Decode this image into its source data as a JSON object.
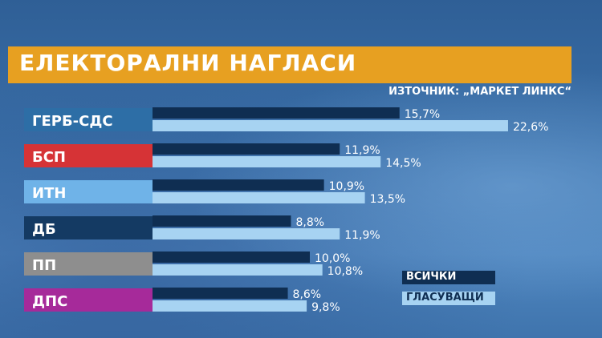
{
  "title": "ЕЛЕКТОРАЛНИ НАГЛАСИ",
  "source": "ИЗТОЧНИК: „МАРКЕТ ЛИНКС“",
  "colors": {
    "title_bar": "#e7a021",
    "series_all": "#0f2e52",
    "series_voters": "#a7d3f2"
  },
  "legend": {
    "all": "ВСИЧКИ",
    "voters": "ГЛАСУВАЩИ"
  },
  "chart_data": {
    "type": "bar",
    "orientation": "horizontal",
    "categories": [
      "ГЕРБ-СДС",
      "БСП",
      "ИТН",
      "ДБ",
      "ПП",
      "ДПС"
    ],
    "category_colors": [
      "#2d6ea6",
      "#d63336",
      "#6fb3e8",
      "#143a63",
      "#8e8e8e",
      "#a62a9a"
    ],
    "category_text_colors": [
      "#ffffff",
      "#ffffff",
      "#ffffff",
      "#ffffff",
      "#ffffff",
      "#ffffff"
    ],
    "series": [
      {
        "name": "ВСИЧКИ",
        "values": [
          15.7,
          11.9,
          10.9,
          8.8,
          10.0,
          8.6
        ],
        "labels": [
          "15,7%",
          "11,9%",
          "10,9%",
          "8,8%",
          "10,0%",
          "8,6%"
        ]
      },
      {
        "name": "ГЛАСУВАЩИ",
        "values": [
          22.6,
          14.5,
          13.5,
          11.9,
          10.8,
          9.8
        ],
        "labels": [
          "22,6%",
          "14,5%",
          "13,5%",
          "11,9%",
          "10,8%",
          "9,8%"
        ]
      }
    ],
    "unit": "%",
    "legend_position": "bottom-right"
  }
}
